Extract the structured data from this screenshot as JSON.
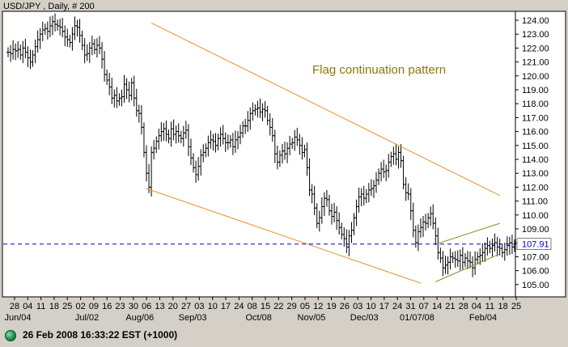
{
  "chart_data": {
    "type": "ohlc",
    "title": "USD/JPY , Daily, # 200",
    "annotation": "Flag continuation pattern",
    "current_price": "107.91",
    "ylim": [
      104.6,
      124.7
    ],
    "y_ticks": [
      105,
      106,
      107,
      108,
      109,
      110,
      111,
      112,
      113,
      114,
      115,
      116,
      117,
      118,
      119,
      120,
      121,
      122,
      123,
      124
    ],
    "y_tick_labels": [
      "105.00",
      "106.00",
      "107.00",
      "",
      "109.00",
      "110.00",
      "111.00",
      "112.00",
      "113.00",
      "114.00",
      "115.00",
      "116.00",
      "117.00",
      "118.00",
      "119.00",
      "120.00",
      "121.00",
      "122.00",
      "123.00",
      "124.00"
    ],
    "x_day_labels": [
      "28",
      "04",
      "11",
      "18",
      "25",
      "02",
      "09",
      "16",
      "23",
      "30",
      "06",
      "13",
      "20",
      "27",
      "03",
      "10",
      "17",
      "24",
      "08",
      "15",
      "22",
      "29",
      "05",
      "12",
      "19",
      "26",
      "03",
      "10",
      "17",
      "24",
      "31",
      "07",
      "14",
      "21",
      "28",
      "04",
      "11",
      "18",
      "25"
    ],
    "x_month_labels": [
      "Jun/04",
      "Jul/02",
      "Aug/06",
      "Sep/03",
      "Oct/08",
      "Nov/05",
      "Dec/03",
      "01/07/08",
      "Feb/04"
    ],
    "close_series": [
      121.7,
      121.6,
      121.9,
      121.8,
      121.9,
      121.5,
      122.0,
      121.7,
      121.3,
      121.0,
      121.5,
      122.1,
      122.6,
      123.0,
      123.3,
      123.4,
      123.2,
      123.6,
      123.9,
      123.7,
      123.6,
      123.5,
      123.2,
      122.8,
      122.6,
      122.4,
      123.0,
      123.6,
      123.5,
      122.9,
      122.2,
      121.5,
      121.6,
      122.0,
      122.3,
      121.9,
      122.2,
      122.0,
      121.2,
      120.1,
      119.7,
      119.2,
      118.4,
      118.6,
      118.2,
      118.4,
      118.5,
      119.4,
      119.0,
      118.6,
      119.5,
      118.4,
      117.5,
      117.3,
      116.3,
      114.5,
      113.0,
      112.0,
      114.5,
      114.8,
      115.3,
      115.7,
      116.0,
      116.2,
      115.8,
      115.5,
      116.2,
      115.8,
      116.0,
      115.7,
      115.5,
      115.9,
      116.1,
      114.9,
      114.1,
      113.4,
      112.9,
      113.5,
      114.3,
      114.5,
      114.8,
      115.2,
      115.4,
      115.3,
      115.0,
      115.5,
      115.8,
      115.5,
      115.2,
      115.2,
      115.4,
      114.9,
      115.4,
      115.6,
      115.9,
      116.4,
      116.4,
      116.8,
      117.3,
      117.5,
      117.6,
      117.7,
      117.4,
      117.6,
      117.5,
      116.8,
      116.3,
      115.7,
      114.4,
      113.8,
      114.3,
      114.6,
      114.4,
      114.8,
      115.1,
      115.2,
      115.6,
      115.4,
      115.0,
      114.5,
      114.7,
      113.4,
      111.8,
      111.5,
      110.5,
      109.4,
      109.8,
      110.6,
      111.2,
      111.1,
      110.3,
      109.9,
      110.2,
      109.6,
      109.1,
      108.6,
      108.3,
      107.7,
      108.5,
      108.9,
      109.8,
      110.6,
      111.3,
      111.5,
      111.2,
      111.5,
      111.8,
      111.9,
      112.1,
      112.5,
      113.0,
      113.3,
      113.1,
      113.2,
      113.8,
      114.2,
      114.4,
      114.0,
      114.5,
      113.9,
      112.2,
      111.6,
      111.5,
      110.3,
      108.9,
      108.0,
      108.8,
      109.1,
      109.5,
      109.4,
      109.8,
      110.1,
      109.4,
      108.5,
      107.3,
      106.9,
      106.2,
      106.4,
      106.6,
      107.0,
      106.9,
      106.8,
      106.7,
      107.1,
      106.6,
      106.9,
      106.7,
      106.6,
      106.2,
      106.8,
      107.0,
      107.1,
      107.3,
      107.6,
      107.8,
      107.6,
      107.8,
      108.0,
      107.7,
      107.6,
      107.3,
      107.5,
      107.8,
      108.0,
      107.7,
      107.9
    ],
    "trend_lines": [
      {
        "name": "upper channel",
        "from": {
          "bar": 58,
          "y": 123.8
        },
        "to": {
          "bar": 199,
          "y": 111.4
        }
      },
      {
        "name": "lower channel",
        "from": {
          "bar": 56,
          "y": 111.9
        },
        "to": {
          "bar": 167,
          "y": 105.1
        }
      },
      {
        "name": "flag upper",
        "from": {
          "bar": 173,
          "y": 107.9
        },
        "to": {
          "bar": 199,
          "y": 109.4
        }
      },
      {
        "name": "flag lower",
        "from": {
          "bar": 173,
          "y": 105.2
        },
        "to": {
          "bar": 199,
          "y": 107.2
        }
      }
    ],
    "reference_line": 107.91,
    "grid": false,
    "colors": {
      "bars": "#000000",
      "trend": "#e8902c",
      "flag": "#8a8a1a",
      "reference": "#0000c8",
      "annotation": "#8a7a00",
      "price_tag": "#0000c8"
    }
  },
  "status": {
    "datetime": "26 Feb 2008 16:33:22  EST (+1000)",
    "indicator": "green-status-light"
  }
}
